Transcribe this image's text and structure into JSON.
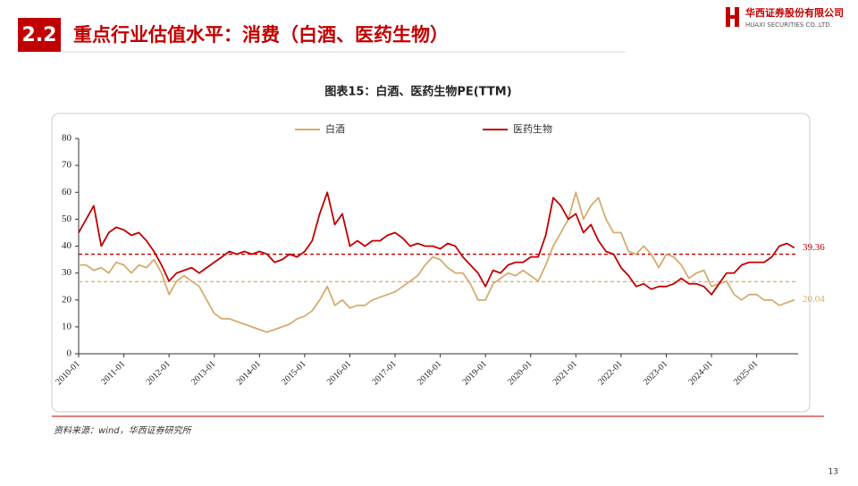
{
  "header": {
    "section": "2.2",
    "title": "重点行业估值水平：消费（白酒、医药生物）",
    "logo_cn": "华西证券股份有限公司",
    "logo_en": "HUAXI SECURITIES CO.,LTD."
  },
  "chart_data": {
    "type": "line",
    "title": "图表15：白酒、医药生物PE(TTM)",
    "x": [
      "2010-01",
      "2010-03",
      "2010-05",
      "2010-07",
      "2010-09",
      "2010-11",
      "2011-01",
      "2011-03",
      "2011-05",
      "2011-07",
      "2011-09",
      "2011-11",
      "2012-01",
      "2012-03",
      "2012-05",
      "2012-07",
      "2012-09",
      "2012-11",
      "2013-01",
      "2013-03",
      "2013-05",
      "2013-07",
      "2013-09",
      "2013-11",
      "2014-01",
      "2014-03",
      "2014-05",
      "2014-07",
      "2014-09",
      "2014-11",
      "2015-01",
      "2015-03",
      "2015-05",
      "2015-07",
      "2015-09",
      "2015-11",
      "2016-01",
      "2016-03",
      "2016-05",
      "2016-07",
      "2016-09",
      "2016-11",
      "2017-01",
      "2017-03",
      "2017-05",
      "2017-07",
      "2017-09",
      "2017-11",
      "2018-01",
      "2018-03",
      "2018-05",
      "2018-07",
      "2018-09",
      "2018-11",
      "2019-01",
      "2019-03",
      "2019-05",
      "2019-07",
      "2019-09",
      "2019-11",
      "2020-01",
      "2020-03",
      "2020-05",
      "2020-07",
      "2020-09",
      "2020-11",
      "2021-01",
      "2021-03",
      "2021-05",
      "2021-07",
      "2021-09",
      "2021-11",
      "2022-01",
      "2022-03",
      "2022-05",
      "2022-07",
      "2022-09",
      "2022-11",
      "2023-01",
      "2023-03",
      "2023-05",
      "2023-07",
      "2023-09",
      "2023-11",
      "2024-01",
      "2024-03",
      "2024-05",
      "2024-07",
      "2024-09",
      "2024-11",
      "2025-01",
      "2025-03",
      "2025-05",
      "2025-07",
      "2025-09",
      "2025-11"
    ],
    "series": [
      {
        "name": "白酒",
        "color": "#d5ac6e",
        "values": [
          33,
          33,
          31,
          32,
          30,
          34,
          33,
          30,
          33,
          32,
          35,
          30,
          22,
          27,
          29,
          27,
          25,
          20,
          15,
          13,
          13,
          12,
          11,
          10,
          9,
          8,
          9,
          10,
          11,
          13,
          14,
          16,
          20,
          25,
          18,
          20,
          17,
          18,
          18,
          20,
          21,
          22,
          23,
          25,
          27,
          29,
          33,
          36,
          35,
          32,
          30,
          30,
          26,
          20,
          20,
          26,
          28,
          30,
          29,
          31,
          29,
          27,
          33,
          40,
          45,
          50,
          60,
          50,
          55,
          58,
          50,
          45,
          45,
          38,
          37,
          40,
          37,
          32,
          37,
          36,
          33,
          28,
          30,
          31,
          25,
          26,
          27,
          22,
          20,
          22,
          22,
          20,
          20,
          18,
          19,
          20.04
        ]
      },
      {
        "name": "医药生物",
        "color": "#c00000",
        "values": [
          45,
          50,
          55,
          40,
          45,
          47,
          46,
          44,
          45,
          42,
          38,
          33,
          27,
          30,
          31,
          32,
          30,
          32,
          34,
          36,
          38,
          37,
          38,
          37,
          38,
          37,
          34,
          35,
          37,
          36,
          38,
          42,
          52,
          60,
          48,
          52,
          40,
          42,
          40,
          42,
          42,
          44,
          45,
          43,
          40,
          41,
          40,
          40,
          39,
          41,
          40,
          36,
          33,
          30,
          25,
          31,
          30,
          33,
          34,
          34,
          36,
          36,
          44,
          58,
          55,
          50,
          52,
          45,
          48,
          42,
          38,
          37,
          32,
          29,
          25,
          26,
          24,
          25,
          25,
          26,
          28,
          26,
          26,
          25,
          22,
          26,
          30,
          30,
          33,
          34,
          34,
          34,
          36,
          40,
          41,
          39.36
        ]
      }
    ],
    "reference_lines": [
      {
        "value": 26.8,
        "color": "#d5ac6e"
      },
      {
        "value": 37,
        "color": "#c00000"
      }
    ],
    "xlim": [
      "2010-01",
      "2025-12"
    ],
    "xticks": [
      "2010-01",
      "2011-01",
      "2012-01",
      "2013-01",
      "2014-01",
      "2015-01",
      "2016-01",
      "2017-01",
      "2018-01",
      "2019-01",
      "2020-01",
      "2021-01",
      "2022-01",
      "2023-01",
      "2024-01",
      "2025-01"
    ],
    "ylim": [
      0,
      80
    ],
    "yticks": [
      0,
      10,
      20,
      30,
      40,
      50,
      60,
      70,
      80
    ],
    "grid": false,
    "legend": "top"
  },
  "source": "资料来源：wind，华西证券研究所",
  "page_number": "13"
}
